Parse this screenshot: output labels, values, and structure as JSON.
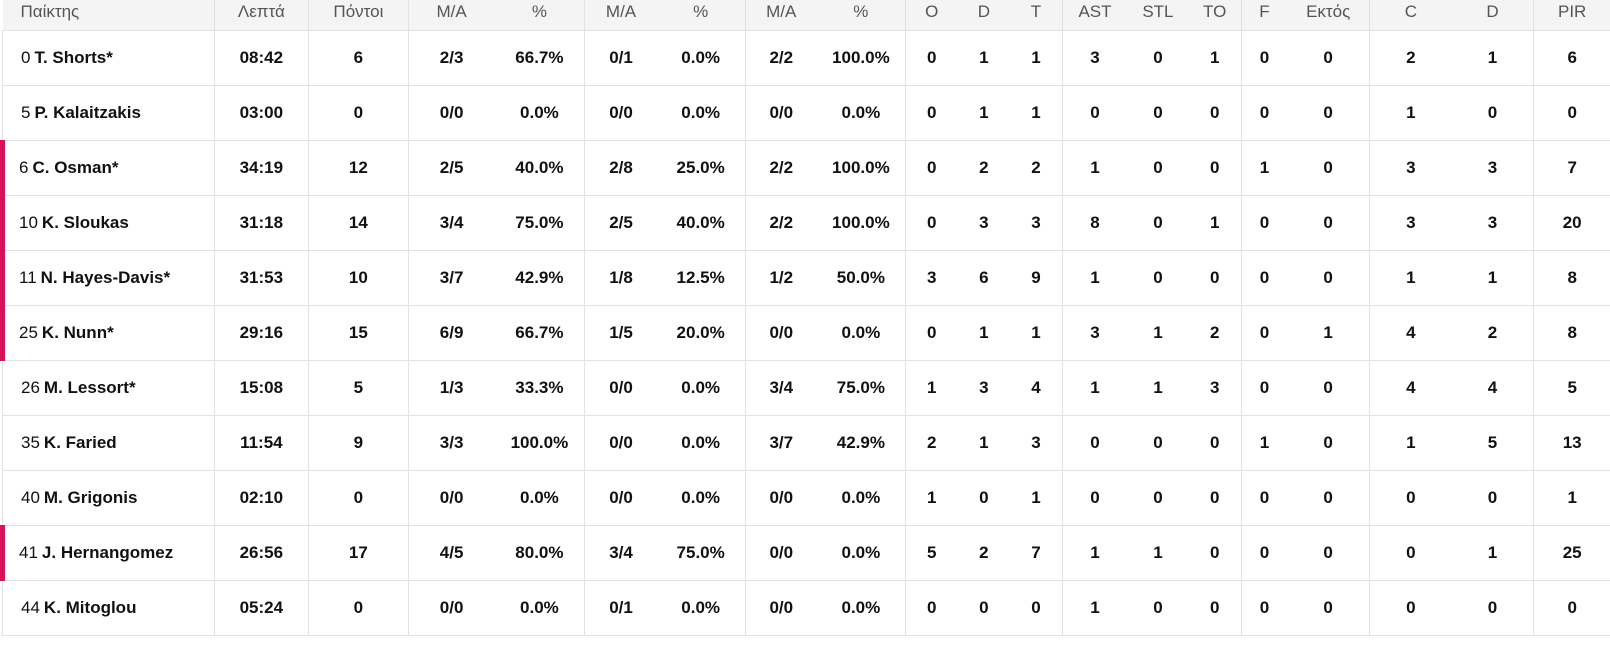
{
  "headers": [
    "Παίκτης",
    "Λεπτά",
    "Πόντοι",
    "Μ/Α",
    "%",
    "Μ/Α",
    "%",
    "Μ/Α",
    "%",
    "O",
    "D",
    "T",
    "AST",
    "STL",
    "TO",
    "F",
    "Εκτός",
    "C",
    "D",
    "PIR"
  ],
  "rows": [
    {
      "num": "0",
      "name": "T. Shorts*",
      "on_court": false,
      "stats": [
        "08:42",
        "6",
        "2/3",
        "66.7%",
        "0/1",
        "0.0%",
        "2/2",
        "100.0%",
        "0",
        "1",
        "1",
        "3",
        "0",
        "1",
        "0",
        "0",
        "2",
        "1",
        "6"
      ]
    },
    {
      "num": "5",
      "name": "P. Kalaitzakis",
      "on_court": false,
      "stats": [
        "03:00",
        "0",
        "0/0",
        "0.0%",
        "0/0",
        "0.0%",
        "0/0",
        "0.0%",
        "0",
        "1",
        "1",
        "0",
        "0",
        "0",
        "0",
        "0",
        "1",
        "0",
        "0"
      ]
    },
    {
      "num": "6",
      "name": "C. Osman*",
      "on_court": true,
      "stats": [
        "34:19",
        "12",
        "2/5",
        "40.0%",
        "2/8",
        "25.0%",
        "2/2",
        "100.0%",
        "0",
        "2",
        "2",
        "1",
        "0",
        "0",
        "1",
        "0",
        "3",
        "3",
        "7"
      ]
    },
    {
      "num": "10",
      "name": "K. Sloukas",
      "on_court": true,
      "stats": [
        "31:18",
        "14",
        "3/4",
        "75.0%",
        "2/5",
        "40.0%",
        "2/2",
        "100.0%",
        "0",
        "3",
        "3",
        "8",
        "0",
        "1",
        "0",
        "0",
        "3",
        "3",
        "20"
      ]
    },
    {
      "num": "11",
      "name": "N. Hayes-Davis*",
      "on_court": true,
      "stats": [
        "31:53",
        "10",
        "3/7",
        "42.9%",
        "1/8",
        "12.5%",
        "1/2",
        "50.0%",
        "3",
        "6",
        "9",
        "1",
        "0",
        "0",
        "0",
        "0",
        "1",
        "1",
        "8"
      ]
    },
    {
      "num": "25",
      "name": "K. Nunn*",
      "on_court": true,
      "stats": [
        "29:16",
        "15",
        "6/9",
        "66.7%",
        "1/5",
        "20.0%",
        "0/0",
        "0.0%",
        "0",
        "1",
        "1",
        "3",
        "1",
        "2",
        "0",
        "1",
        "4",
        "2",
        "8"
      ]
    },
    {
      "num": "26",
      "name": "M. Lessort*",
      "on_court": false,
      "stats": [
        "15:08",
        "5",
        "1/3",
        "33.3%",
        "0/0",
        "0.0%",
        "3/4",
        "75.0%",
        "1",
        "3",
        "4",
        "1",
        "1",
        "3",
        "0",
        "0",
        "4",
        "4",
        "5"
      ]
    },
    {
      "num": "35",
      "name": "K. Faried",
      "on_court": false,
      "stats": [
        "11:54",
        "9",
        "3/3",
        "100.0%",
        "0/0",
        "0.0%",
        "3/7",
        "42.9%",
        "2",
        "1",
        "3",
        "0",
        "0",
        "0",
        "1",
        "0",
        "1",
        "5",
        "13"
      ]
    },
    {
      "num": "40",
      "name": "M. Grigonis",
      "on_court": false,
      "stats": [
        "02:10",
        "0",
        "0/0",
        "0.0%",
        "0/0",
        "0.0%",
        "0/0",
        "0.0%",
        "1",
        "0",
        "1",
        "0",
        "0",
        "0",
        "0",
        "0",
        "0",
        "0",
        "1"
      ]
    },
    {
      "num": "41",
      "name": "J. Hernangomez",
      "on_court": true,
      "stats": [
        "26:56",
        "17",
        "4/5",
        "80.0%",
        "3/4",
        "75.0%",
        "0/0",
        "0.0%",
        "5",
        "2",
        "7",
        "1",
        "1",
        "0",
        "0",
        "0",
        "0",
        "1",
        "25"
      ]
    },
    {
      "num": "44",
      "name": "K. Mitoglou",
      "on_court": false,
      "stats": [
        "05:24",
        "0",
        "0/0",
        "0.0%",
        "0/1",
        "0.0%",
        "0/0",
        "0.0%",
        "0",
        "0",
        "0",
        "1",
        "0",
        "0",
        "0",
        "0",
        "0",
        "0",
        "0"
      ]
    }
  ],
  "colors": {
    "on_court_marker": "#d3145a",
    "header_bg": "#f4f4f4",
    "grid": "#e2e2e2"
  }
}
